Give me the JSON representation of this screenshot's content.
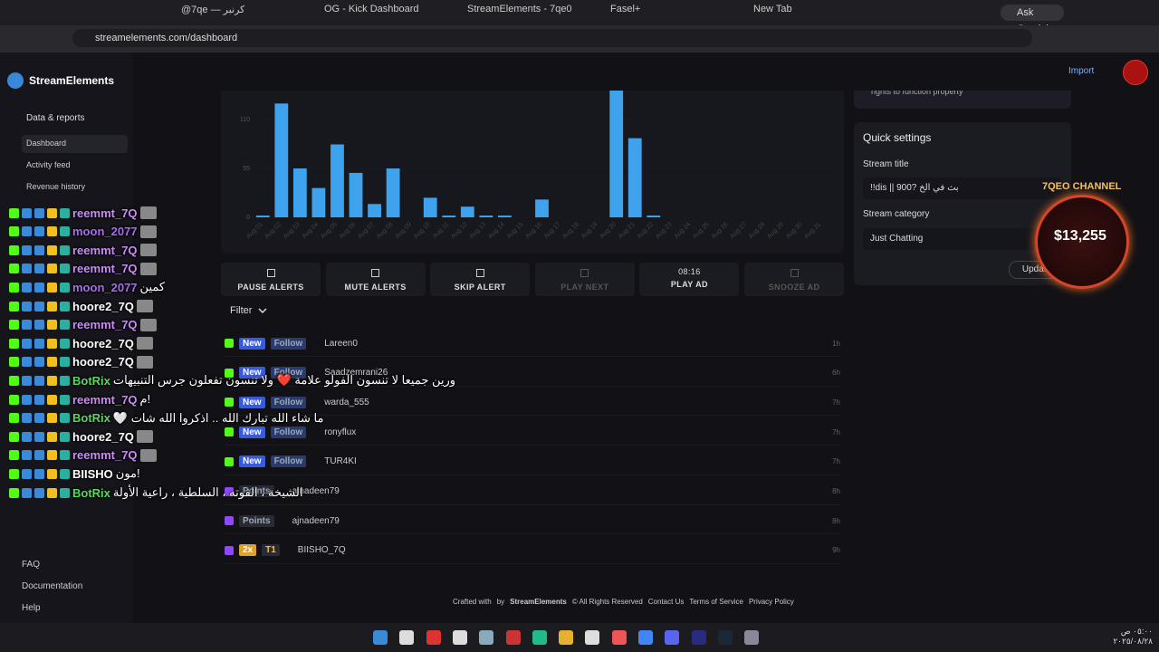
{
  "browser": {
    "tabs": [
      "@7qe — كرنبر",
      "OG - Kick Dashboard",
      "StreamElements - 7qe0",
      "Fasel+",
      "New Tab"
    ],
    "ask": "Ask Gemini",
    "url": "streamelements.com/dashboard"
  },
  "sidebar": {
    "brand": "StreamElements",
    "section": "Data & reports",
    "items": [
      "Dashboard",
      "Activity feed",
      "Revenue history"
    ],
    "footer": [
      "FAQ",
      "Documentation",
      "Help"
    ]
  },
  "header": {
    "import": "Import"
  },
  "chart_data": {
    "type": "bar",
    "categories": [
      "Aug 01",
      "Aug 02",
      "Aug 03",
      "Aug 04",
      "Aug 05",
      "Aug 06",
      "Aug 07",
      "Aug 08",
      "Aug 09",
      "Aug 10",
      "Aug 11",
      "Aug 12",
      "Aug 13",
      "Aug 14",
      "Aug 15",
      "Aug 16",
      "Aug 17",
      "Aug 18",
      "Aug 19",
      "Aug 20",
      "Aug 21",
      "Aug 22",
      "Aug 23",
      "Aug 24",
      "Aug 25",
      "Aug 26",
      "Aug 27",
      "Aug 28",
      "Aug 29",
      "Aug 30",
      "Aug 31"
    ],
    "values": [
      2,
      128,
      55,
      33,
      82,
      50,
      15,
      55,
      0,
      22,
      2,
      12,
      2,
      2,
      0,
      20,
      0,
      0,
      0,
      145,
      89,
      2,
      0,
      0,
      0,
      0,
      0,
      0,
      0,
      0,
      0
    ],
    "ylim": [
      0,
      150
    ],
    "yticks": [
      0,
      55,
      110
    ],
    "color": "#3ea3ec",
    "grid": true
  },
  "controls": [
    {
      "label": "PAUSE ALERTS"
    },
    {
      "label": "MUTE ALERTS"
    },
    {
      "label": "SKIP ALERT"
    },
    {
      "label": "PLAY NEXT"
    },
    {
      "timer": "08:16",
      "label": "PLAY AD"
    },
    {
      "label": "SNOOZE AD"
    }
  ],
  "feed": {
    "filter": "Filter",
    "rows": [
      {
        "badge": "New",
        "type": "Follow",
        "name": "Lareen0",
        "time": "1h"
      },
      {
        "badge": "New",
        "type": "Follow",
        "name": "Saadzemrani26",
        "time": "6h"
      },
      {
        "badge": "New",
        "type": "Follow",
        "name": "warda_555",
        "time": "7h"
      },
      {
        "badge": "New",
        "type": "Follow",
        "name": "ronyflux",
        "time": "7h"
      },
      {
        "badge": "New",
        "type": "Follow",
        "name": "TUR4KI",
        "time": "7h"
      },
      {
        "type": "Points",
        "name": "ajnadeen79",
        "time": "8h"
      },
      {
        "type": "Points",
        "name": "ajnadeen79",
        "time": "8h"
      },
      {
        "badge": "2x",
        "type": "T1",
        "name": "BIISHO_7Q",
        "time": "9h"
      }
    ]
  },
  "footer": {
    "crafted": "Crafted with",
    "by": "by",
    "brand": "StreamElements",
    "links": [
      "© All Rights Reserved",
      "Contact Us",
      "Terms of Service",
      "Privacy Policy"
    ]
  },
  "quick_settings": {
    "note": "rights to function property",
    "title": "Quick settings",
    "stream_title_label": "Stream title",
    "stream_title": "!!dis || 900? بث في الخ",
    "category_label": "Stream category",
    "category": "Just Chatting",
    "update": "Update"
  },
  "widget": {
    "channel": "7QEO CHANNEL",
    "amount": "$13,255"
  },
  "chat": [
    {
      "user": "reemmt_7Q",
      "color": "#c98cf2",
      "text": ""
    },
    {
      "user": "moon_2077",
      "color": "#a86cf2",
      "text": ""
    },
    {
      "user": "reemmt_7Q",
      "color": "#c98cf2",
      "text": ""
    },
    {
      "user": "reemmt_7Q",
      "color": "#c98cf2",
      "text": ""
    },
    {
      "user": "moon_2077",
      "color": "#a86cf2",
      "text": "كمين"
    },
    {
      "user": "hoore2_7Q",
      "color": "#ffffff",
      "text": ""
    },
    {
      "user": "reemmt_7Q",
      "color": "#c98cf2",
      "text": ""
    },
    {
      "user": "hoore2_7Q",
      "color": "#ffffff",
      "text": ""
    },
    {
      "user": "hoore2_7Q",
      "color": "#ffffff",
      "text": ""
    },
    {
      "user": "BotRix",
      "color": "#5cd65c",
      "text": "ورين جميعا لا تنسون الفولو علامة ❤️ ولا تنسون تفعلون جرس التنبيهات"
    },
    {
      "user": "reemmt_7Q",
      "color": "#c98cf2",
      "text": "!م"
    },
    {
      "user": "BotRix",
      "color": "#5cd65c",
      "text": "ما شاء الله تبارك الله .. اذكروا الله شات 🤍"
    },
    {
      "user": "hoore2_7Q",
      "color": "#ffffff",
      "text": ""
    },
    {
      "user": "reemmt_7Q",
      "color": "#c98cf2",
      "text": ""
    },
    {
      "user": "BIISHO",
      "color": "#ffffff",
      "text": "!مون"
    },
    {
      "user": "BotRix",
      "color": "#5cd65c",
      "text": "الشيخة ، القوته ، السلطية ، راعية الأولة"
    }
  ],
  "taskbar": {
    "time": "٠٥:٠٠ ص",
    "date": "٢٠٢٥/٠٨/٢٨"
  }
}
